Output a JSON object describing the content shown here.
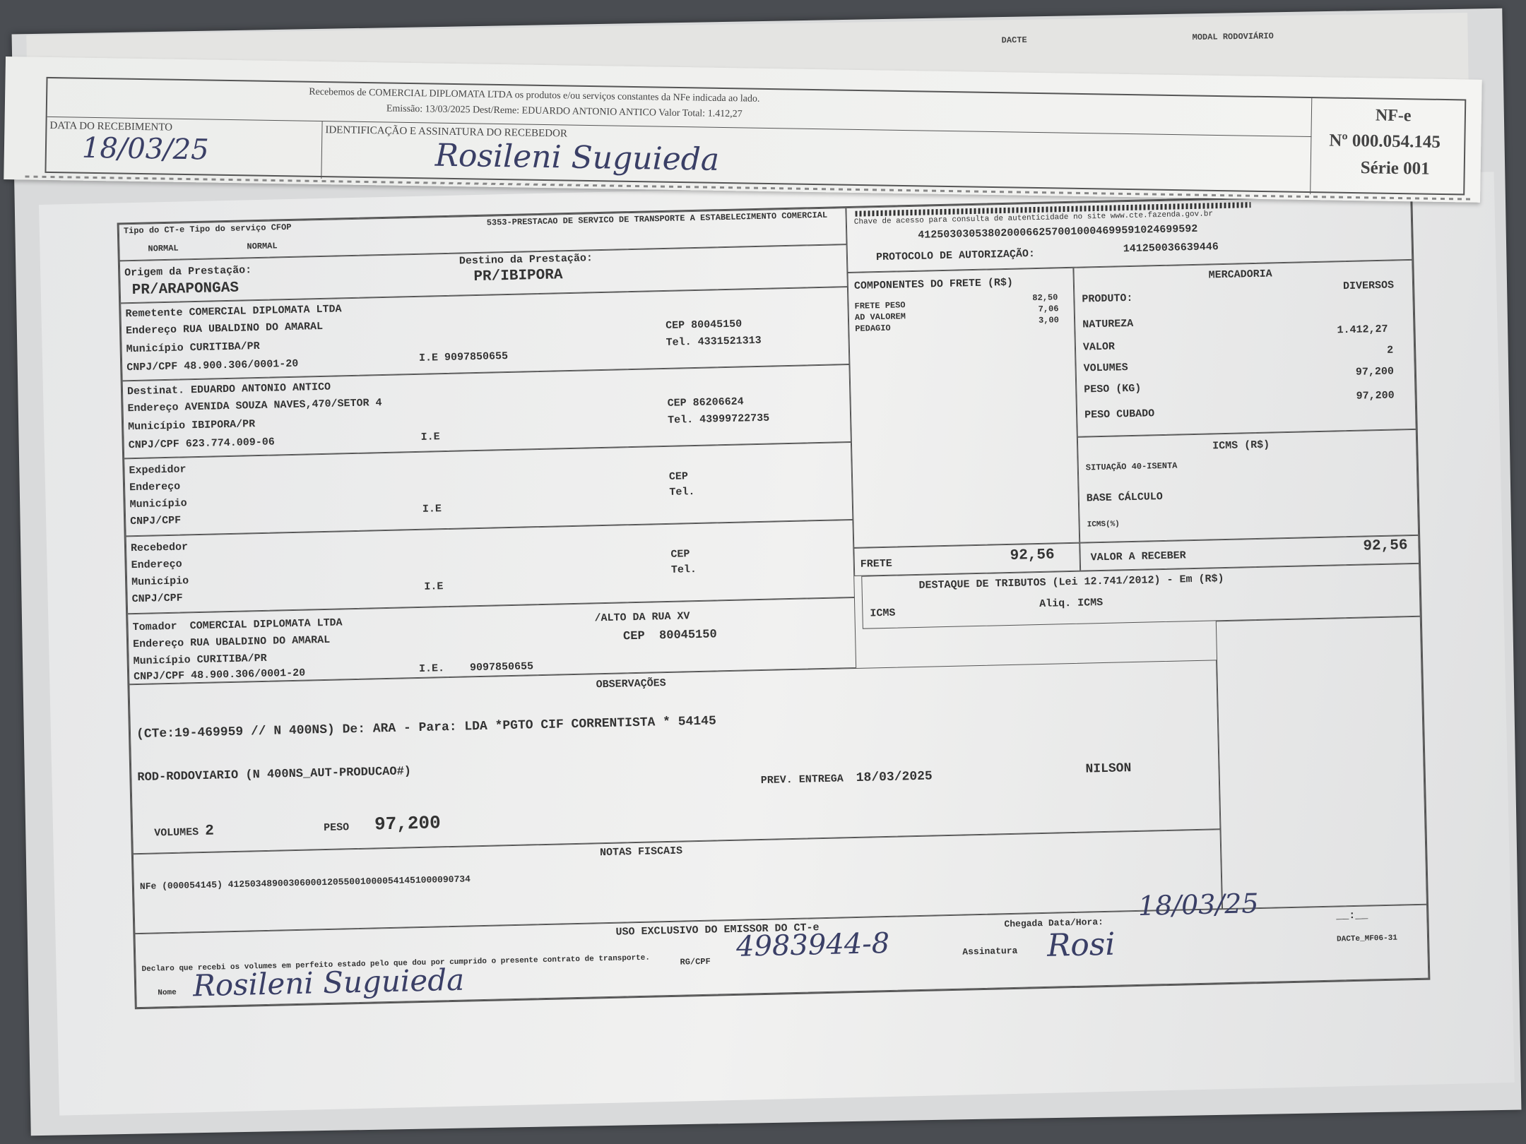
{
  "back_header": {
    "dacte": "DACTE",
    "modal": "MODAL RODOVIÁRIO"
  },
  "stub": {
    "line1": "Recebemos de COMERCIAL DIPLOMATA LTDA os produtos e/ou serviços constantes da NFe indicada ao lado.",
    "line2": "Emissão: 13/03/2025  Dest/Reme: EDUARDO ANTONIO ANTICO  Valor Total: 1.412,27",
    "data_label": "DATA DO RECEBIMENTO",
    "data_value": "18/03/25",
    "ident_label": "IDENTIFICAÇÃO E ASSINATURA DO RECEBEDOR",
    "ident_value": "Rosileni Suguieda",
    "nfe": "NF-e",
    "numero": "Nº 000.054.145",
    "serie": "Série 001"
  },
  "cte": {
    "tipo_label": "Tipo do CT-e Tipo do serviço CFOP",
    "tipo": "NORMAL",
    "servico": "NORMAL",
    "cfop": "5353-PRESTACAO DE SERVICO DE TRANSPORTE A ESTABELECIMENTO COMERCIAL",
    "origem_label": "Origem da Prestação:",
    "origem": "PR/ARAPONGAS",
    "destino_label": "Destino da Prestação:",
    "destino": "PR/IBIPORA",
    "chave_label": "Chave de acesso para consulta de autenticidade no site www.cte.fazenda.gov.br",
    "chave": "41250303053802000662570010004699591024699592",
    "protocolo_label": "PROTOCOLO DE AUTORIZAÇÃO:",
    "protocolo": "141250036639446"
  },
  "remetente": {
    "label": "Remetente",
    "nome": "COMERCIAL DIPLOMATA LTDA",
    "end_label": "Endereço",
    "endereco": "RUA UBALDINO DO AMARAL",
    "mun_label": "Município",
    "municipio": "CURITIBA/PR",
    "cnpj_label": "CNPJ/CPF",
    "cnpj": "48.900.306/0001-20",
    "ie_label": "I.E",
    "ie": "9097850655",
    "cep_label": "CEP",
    "cep": "80045150",
    "tel_label": "Tel.",
    "tel": "4331521313"
  },
  "destinatario": {
    "label": "Destinat.",
    "nome": "EDUARDO ANTONIO ANTICO",
    "end_label": "Endereço",
    "endereco": "AVENIDA SOUZA NAVES,470/SETOR 4",
    "mun_label": "Município",
    "municipio": "IBIPORA/PR",
    "cnpj_label": "CNPJ/CPF",
    "cnpj": "623.774.009-06",
    "ie_label": "I.E",
    "cep_label": "CEP",
    "cep": "86206624",
    "tel_label": "Tel.",
    "tel": "43999722735"
  },
  "expedidor": {
    "label": "Expedidor",
    "end_label": "Endereço",
    "mun_label": "Município",
    "cnpj_label": "CNPJ/CPF",
    "ie_label": "I.E",
    "cep_label": "CEP",
    "tel_label": "Tel."
  },
  "recebedor": {
    "label": "Recebedor",
    "end_label": "Endereço",
    "mun_label": "Município",
    "cnpj_label": "CNPJ/CPF",
    "ie_label": "I.E",
    "cep_label": "CEP",
    "tel_label": "Tel."
  },
  "tomador": {
    "label": "Tomador",
    "nome": "COMERCIAL DIPLOMATA LTDA",
    "end_label": "Endereço",
    "endereco": "RUA UBALDINO DO AMARAL",
    "complemento": "/ALTO DA RUA XV",
    "mun_label": "Município",
    "municipio": "CURITIBA/PR",
    "cnpj_label": "CNPJ/CPF",
    "cnpj": "48.900.306/0001-20",
    "ie_label": "I.E.",
    "ie": "9097850655",
    "cep_label": "CEP",
    "cep": "80045150"
  },
  "componentes": {
    "title": "COMPONENTES DO FRETE (R$)",
    "items": [
      {
        "label": "FRETE PESO",
        "value": "82,50"
      },
      {
        "label": "AD VALOREM",
        "value": "7,06"
      },
      {
        "label": "PEDAGIO",
        "value": "3,00"
      }
    ],
    "frete_label": "FRETE",
    "frete": "92,56"
  },
  "mercadoria": {
    "title": "MERCADORIA",
    "produto_label": "PRODUTO:",
    "produto": "DIVERSOS",
    "natureza_label": "NATUREZA",
    "valor_label": "VALOR",
    "valor": "1.412,27",
    "volumes_label": "VOLUMES",
    "volumes": "2",
    "peso_label": "PESO (KG)",
    "peso": "97,200",
    "cubado_label": "PESO CUBADO",
    "cubado": "97,200"
  },
  "icms": {
    "title": "ICMS (R$)",
    "situacao": "SITUAÇÃO 40-ISENTA",
    "base": "BASE CÁLCULO",
    "icms_pct": "ICMS(%)",
    "receber_label": "VALOR A RECEBER",
    "receber": "92,56"
  },
  "tributos": {
    "title": "DESTAQUE DE TRIBUTOS (Lei 12.741/2012) - Em (R$)",
    "icms": "ICMS",
    "aliq": "Aliq. ICMS"
  },
  "observacoes": {
    "title": "OBSERVAÇÕES",
    "line1": "(CTe:19-469959 // N 400NS)    De: ARA - Para: LDA *PGTO CIF CORRENTISTA * 54145",
    "line2": "ROD-RODOVIARIO (N 400NS_AUT-PRODUCAO#)",
    "prev_label": "PREV. ENTREGA",
    "prev": "18/03/2025",
    "motorista": "NILSON",
    "volumes_label": "VOLUMES",
    "volumes": "2",
    "peso_label": "PESO",
    "peso": "97,200"
  },
  "notas": {
    "title": "NOTAS FISCAIS",
    "nfe": "NFe (000054145) 41250348900306000120550010000541451000090734"
  },
  "uso": {
    "title": "USO EXCLUSIVO DO EMISSOR DO CT-e",
    "declaro": "Declaro que recebi os volumes em perfeito estado pelo que dou por cumprido o presente contrato de transporte.",
    "chegada_label": "Chegada Data/Hora:",
    "chegada": "18/03/25",
    "hora": "__:__",
    "rg_label": "RG/CPF",
    "rg": "4983944-8",
    "assinatura_label": "Assinatura",
    "assinatura": "Rosi",
    "nome_label": "Nome",
    "nome": "Rosileni Suguieda",
    "modelo": "DACTe_MF06-31"
  }
}
